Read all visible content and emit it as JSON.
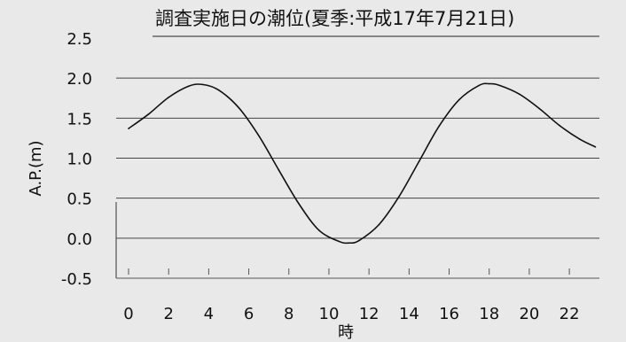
{
  "chart_data": {
    "type": "line",
    "title": "調査実施日の潮位(夏季:平成17年7月21日)",
    "xlabel": "時",
    "ylabel": "A.P.(m)",
    "xlim": [
      0,
      23.5
    ],
    "ylim": [
      -0.5,
      2.5
    ],
    "xticks": [
      0,
      2,
      4,
      6,
      8,
      10,
      12,
      14,
      16,
      18,
      20,
      22
    ],
    "yticks": [
      2.5,
      2.0,
      1.5,
      1.0,
      0.5,
      0.0,
      -0.5
    ],
    "ytick_labels": [
      "2.5",
      "2.0",
      "1.5",
      "1.0",
      "0.5",
      "0.0",
      "-0.5"
    ],
    "grid": "horizontal",
    "series": [
      {
        "x": [
          0,
          1,
          2,
          3,
          3.7,
          4.5,
          5.5,
          6.5,
          7.5,
          8.5,
          9.5,
          10.5,
          11,
          11.5,
          12.5,
          13.5,
          14.5,
          15.5,
          16.5,
          17.5,
          18,
          18.5,
          19.5,
          20.5,
          21.5,
          22.5,
          23.3
        ],
        "values": [
          1.37,
          1.55,
          1.76,
          1.9,
          1.92,
          1.85,
          1.63,
          1.28,
          0.85,
          0.43,
          0.1,
          -0.04,
          -0.06,
          -0.03,
          0.17,
          0.52,
          0.96,
          1.4,
          1.73,
          1.91,
          1.93,
          1.91,
          1.8,
          1.62,
          1.41,
          1.24,
          1.14
        ]
      }
    ]
  }
}
